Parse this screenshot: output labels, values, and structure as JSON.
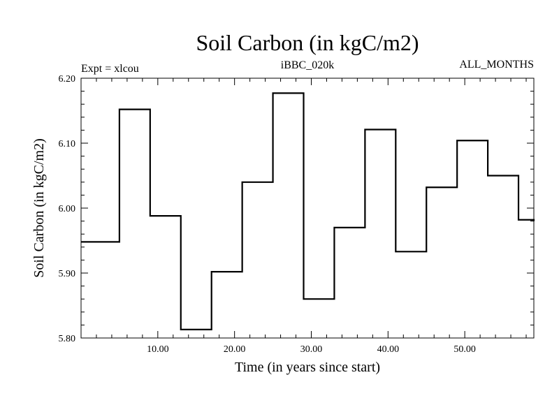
{
  "chart_data": {
    "type": "line",
    "title": "Soil Carbon (in kgC/m2)",
    "subtitle_left": "Expt = xlcou",
    "subtitle_center": "iBBC_020k",
    "subtitle_right": "ALL_MONTHS",
    "xlabel": "Time (in years since start)",
    "ylabel": "Soil Carbon (in kgC/m2)",
    "xlim": [
      0,
      59
    ],
    "ylim": [
      5.8,
      6.2
    ],
    "x_major_ticks": [
      10,
      20,
      30,
      40,
      50
    ],
    "x_tick_labels": [
      "10.00",
      "20.00",
      "30.00",
      "40.00",
      "50.00"
    ],
    "y_major_ticks": [
      5.8,
      5.9,
      6.0,
      6.1,
      6.2
    ],
    "y_tick_labels": [
      "5.80",
      "5.90",
      "6.00",
      "6.10",
      "6.20"
    ],
    "grid": false,
    "line_color": "#000000",
    "series": [
      {
        "step": "post",
        "x": [
          0,
          5,
          9,
          13,
          17,
          21,
          25,
          29,
          33,
          37,
          41,
          45,
          49,
          53,
          57,
          59
        ],
        "values": [
          5.948,
          6.152,
          5.988,
          5.813,
          5.902,
          6.04,
          6.177,
          5.86,
          5.97,
          6.121,
          5.933,
          6.032,
          6.104,
          6.05,
          5.982,
          5.98
        ]
      }
    ]
  }
}
